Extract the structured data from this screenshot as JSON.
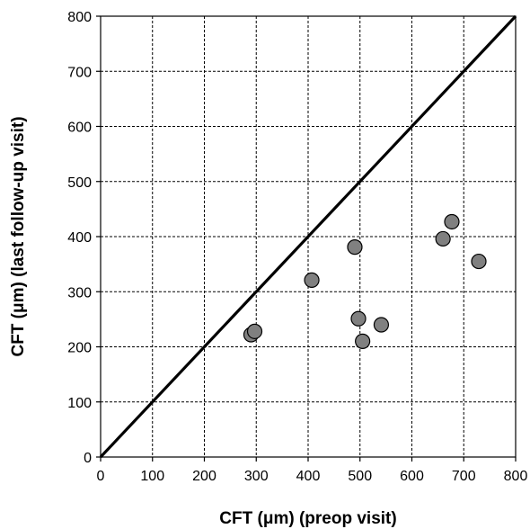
{
  "chart_data": {
    "type": "scatter",
    "title": "",
    "xlabel": "CFT (μm) (preop visit)",
    "ylabel": "CFT (μm) (last follow-up visit)",
    "xlim": [
      0,
      800
    ],
    "ylim": [
      0,
      800
    ],
    "x_ticks": [
      "0",
      "100",
      "200",
      "300",
      "400",
      "500",
      "600",
      "700",
      "800"
    ],
    "y_ticks": [
      "0",
      "100",
      "200",
      "300",
      "400",
      "500",
      "600",
      "700",
      "800"
    ],
    "grid": true,
    "reference_line": {
      "type": "identity",
      "from": [
        0,
        0
      ],
      "to": [
        800,
        800
      ]
    },
    "points": [
      {
        "x": 290,
        "y": 222
      },
      {
        "x": 297,
        "y": 228
      },
      {
        "x": 407,
        "y": 321
      },
      {
        "x": 490,
        "y": 381
      },
      {
        "x": 497,
        "y": 251
      },
      {
        "x": 505,
        "y": 210
      },
      {
        "x": 541,
        "y": 240
      },
      {
        "x": 660,
        "y": 396
      },
      {
        "x": 677,
        "y": 427
      },
      {
        "x": 729,
        "y": 355
      }
    ],
    "colors": {
      "marker_fill": "#808080",
      "marker_stroke": "#000000",
      "line": "#000000"
    }
  }
}
